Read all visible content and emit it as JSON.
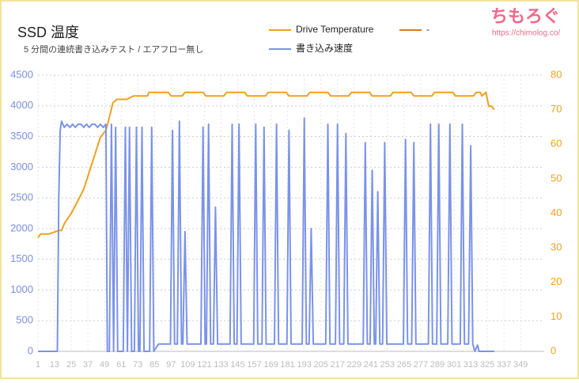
{
  "chart_data": {
    "type": "line",
    "title": "SSD 温度",
    "subtitle": "5 分間の連続書き込みテスト / エアフロー無し",
    "logo": "ちもろぐ",
    "logo_url": "https://chimolog.co/",
    "xlim": [
      1,
      366
    ],
    "xticks": [
      1,
      13,
      25,
      37,
      49,
      61,
      73,
      85,
      97,
      109,
      121,
      133,
      145,
      157,
      169,
      181,
      193,
      205,
      217,
      229,
      241,
      253,
      265,
      277,
      289,
      301,
      313,
      325,
      337,
      349
    ],
    "ylim": [
      0,
      4500
    ],
    "yticks": [
      0,
      500,
      1000,
      1500,
      2000,
      2500,
      3000,
      3500,
      4000,
      4500
    ],
    "y2lim": [
      0,
      80
    ],
    "y2ticks": [
      0,
      10,
      20,
      30,
      40,
      50,
      60,
      70,
      80
    ],
    "grid": true,
    "series": [
      {
        "name": "Drive Temperature",
        "color": "#f0a020",
        "axis": "y2",
        "x": [
          1,
          3,
          9,
          16,
          18,
          20,
          25,
          29,
          34,
          38,
          42,
          46,
          50,
          52,
          55,
          58,
          65,
          70,
          80,
          81,
          95,
          97,
          105,
          107,
          120,
          122,
          135,
          137,
          150,
          152,
          165,
          167,
          180,
          182,
          195,
          197,
          210,
          212,
          225,
          227,
          240,
          242,
          255,
          257,
          270,
          272,
          285,
          287,
          300,
          302,
          315,
          317,
          320,
          321,
          324,
          326,
          328,
          330
        ],
        "values": [
          33,
          34,
          34,
          35,
          35,
          37,
          40,
          43,
          47,
          52,
          57,
          62,
          64,
          67,
          72,
          73,
          73,
          74,
          74,
          75,
          75,
          74,
          74,
          75,
          75,
          74,
          74,
          75,
          75,
          74,
          74,
          75,
          75,
          74,
          74,
          75,
          75,
          74,
          74,
          75,
          75,
          74,
          74,
          75,
          75,
          74,
          74,
          75,
          75,
          74,
          74,
          75,
          75,
          74,
          75,
          71,
          71,
          70
        ]
      },
      {
        "name": "-",
        "color": "#e07818",
        "axis": "y2",
        "x": [],
        "values": []
      },
      {
        "name": "書き込み速度",
        "color": "#7b93e8",
        "x": [
          1,
          15,
          16,
          17,
          18,
          20,
          22,
          24,
          26,
          28,
          30,
          32,
          34,
          36,
          38,
          40,
          42,
          44,
          46,
          48,
          50,
          51,
          52.5,
          54,
          55.5,
          55.5,
          57,
          58.5,
          62.5,
          64,
          65.5,
          65.5,
          67,
          68.5,
          70.5,
          72,
          73.5,
          74.5,
          76,
          77.5,
          81.5,
          83,
          84.5,
          88,
          96.5,
          98,
          99.5,
          101.5,
          103,
          104.5,
          105.5,
          107,
          108.5,
          118.5,
          120,
          121.5,
          122.5,
          124,
          125.5,
          127.5,
          129,
          130.5,
          139.5,
          141,
          142.5,
          144.5,
          146,
          147.5,
          156.5,
          158,
          159.5,
          162.5,
          164,
          165.5,
          171.5,
          173,
          174.5,
          180.5,
          182,
          183.5,
          191.5,
          193,
          194.5,
          196.5,
          198,
          199.5,
          208.5,
          210,
          211.5,
          215.5,
          217,
          218.5,
          221.5,
          223,
          224.5,
          235.5,
          237,
          238.5,
          240.5,
          242,
          243.5,
          244.5,
          246,
          247.5,
          249.5,
          251,
          252.5,
          264.5,
          266,
          267.5,
          270.5,
          272,
          273.5,
          282.5,
          284,
          285.5,
          288.5,
          290,
          291.5,
          296.5,
          298,
          299.5,
          305.5,
          307,
          308.5,
          311.5,
          313,
          314.5,
          316,
          318,
          319,
          330
        ],
        "values": [
          0,
          0,
          2500,
          3600,
          3750,
          3650,
          3700,
          3650,
          3700,
          3650,
          3700,
          3700,
          3650,
          3700,
          3650,
          3700,
          3700,
          3650,
          3700,
          3650,
          3700,
          0,
          0,
          3700,
          0,
          0,
          3650,
          0,
          0,
          3650,
          0,
          0,
          3650,
          0,
          0,
          3650,
          0,
          0,
          3650,
          0,
          0,
          3650,
          0,
          120,
          120,
          3600,
          120,
          120,
          3750,
          120,
          120,
          1950,
          120,
          120,
          3650,
          120,
          120,
          3700,
          120,
          120,
          2350,
          120,
          120,
          3700,
          120,
          120,
          3700,
          120,
          120,
          3700,
          120,
          120,
          3650,
          120,
          120,
          3700,
          120,
          120,
          3600,
          120,
          120,
          3800,
          120,
          120,
          2000,
          120,
          120,
          3700,
          120,
          120,
          3700,
          120,
          120,
          3550,
          120,
          120,
          3400,
          120,
          120,
          2950,
          120,
          120,
          2600,
          120,
          120,
          3400,
          120,
          120,
          3450,
          120,
          120,
          3400,
          120,
          120,
          3700,
          120,
          120,
          3700,
          120,
          120,
          3700,
          120,
          120,
          3700,
          120,
          120,
          3350,
          120,
          0,
          100,
          0,
          0
        ]
      }
    ]
  }
}
